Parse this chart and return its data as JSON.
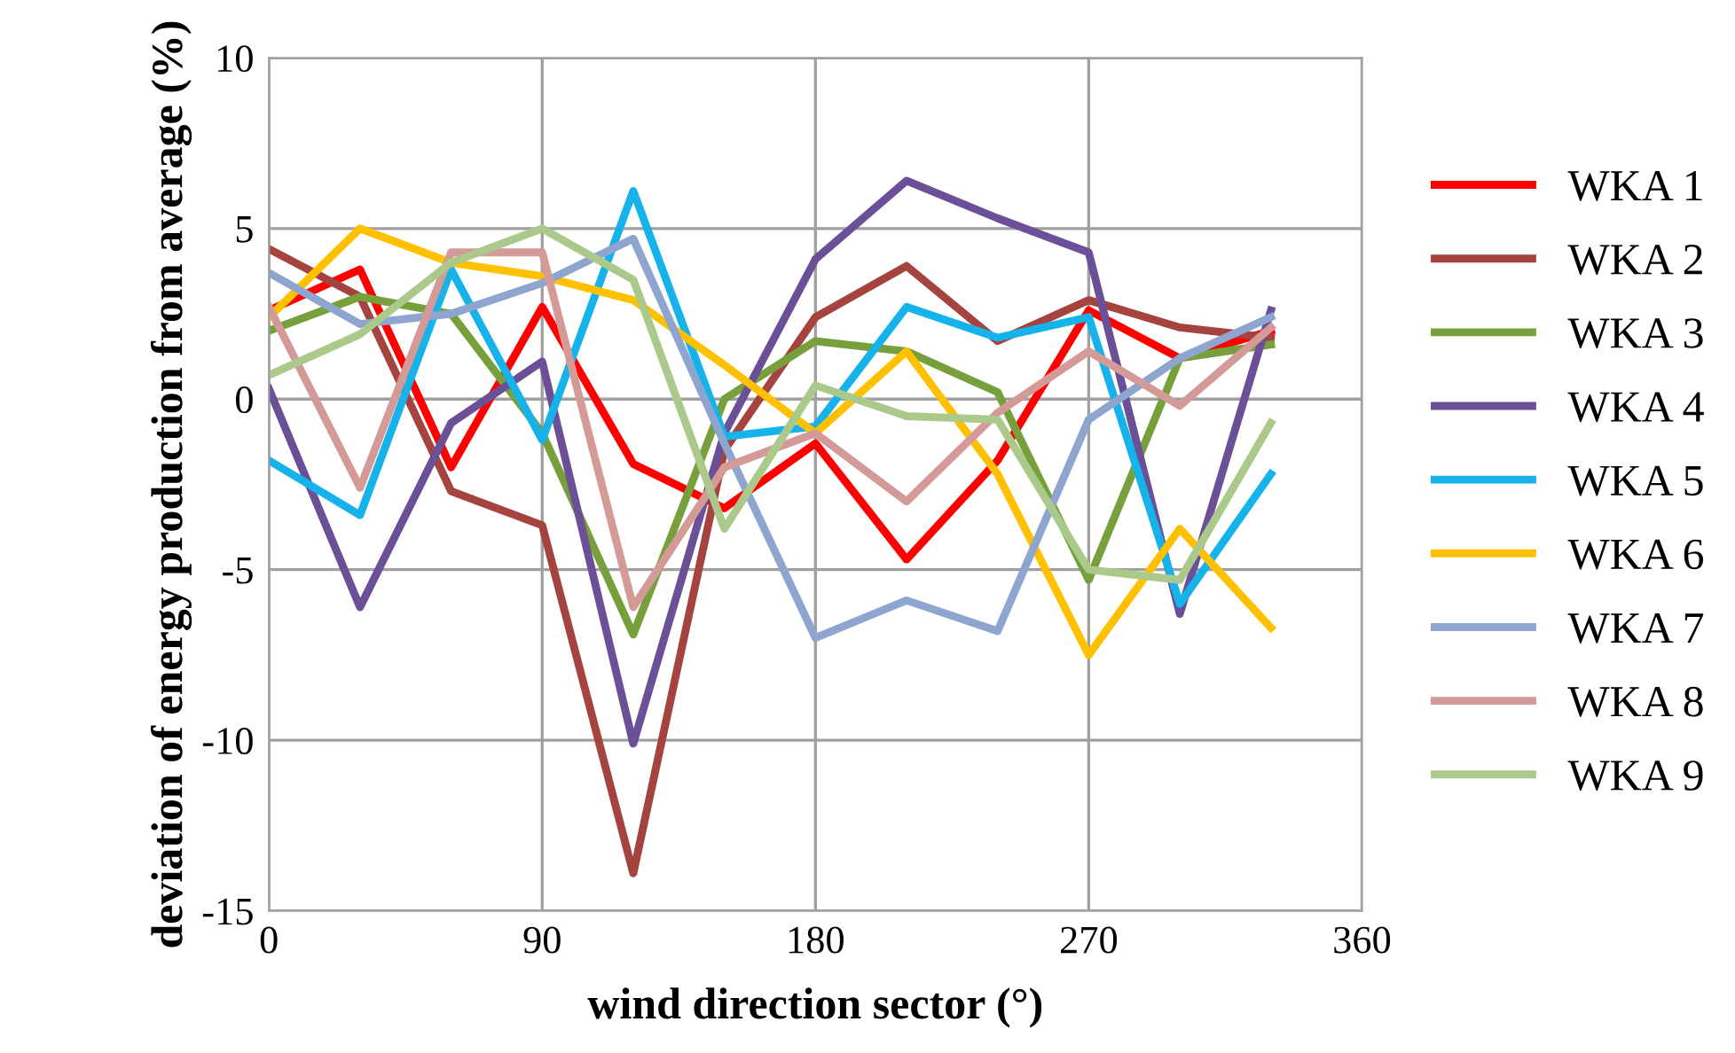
{
  "chart_data": {
    "type": "line",
    "xlabel": "wind direction sector (°)",
    "ylabel": "deviation of energy production from average (%)",
    "x": [
      0,
      30,
      60,
      90,
      120,
      150,
      180,
      210,
      240,
      270,
      300,
      330
    ],
    "xlim": [
      0,
      360
    ],
    "xticks": [
      0,
      90,
      180,
      270,
      360
    ],
    "ylim": [
      -15,
      10
    ],
    "yticks": [
      -15,
      -10,
      -5,
      0,
      5,
      10
    ],
    "grid": true,
    "legend": "right",
    "marker": "none",
    "line_style": "solid",
    "series": [
      {
        "name": "WKA 1",
        "color": "#ff0000",
        "values": [
          2.6,
          3.8,
          -2.0,
          2.7,
          -1.9,
          -3.2,
          -1.3,
          -4.7,
          -1.8,
          2.6,
          1.2,
          2.0
        ]
      },
      {
        "name": "WKA 2",
        "color": "#a5433f",
        "values": [
          4.4,
          3.0,
          -2.7,
          -3.7,
          -13.9,
          -1.5,
          2.4,
          3.9,
          1.7,
          2.9,
          2.1,
          1.8
        ]
      },
      {
        "name": "WKA 3",
        "color": "#77a03c",
        "values": [
          2.0,
          3.0,
          2.5,
          -1.0,
          -6.9,
          0.0,
          1.7,
          1.4,
          0.2,
          -5.3,
          1.2,
          1.6
        ]
      },
      {
        "name": "WKA 4",
        "color": "#6b4f97",
        "values": [
          0.3,
          -6.1,
          -0.7,
          1.1,
          -10.1,
          -1.0,
          4.1,
          6.4,
          5.3,
          4.3,
          -6.3,
          2.6
        ]
      },
      {
        "name": "WKA 5",
        "color": "#16b2ea",
        "values": [
          -1.8,
          -3.4,
          3.8,
          -1.2,
          6.1,
          -1.1,
          -0.8,
          2.7,
          1.8,
          2.4,
          -6.0,
          -2.2
        ]
      },
      {
        "name": "WKA 6",
        "color": "#ffc000",
        "values": [
          2.4,
          5.0,
          4.0,
          3.6,
          2.9,
          1.0,
          -1.0,
          1.4,
          -2.2,
          -7.5,
          -3.8,
          -6.7
        ]
      },
      {
        "name": "WKA 7",
        "color": "#8ea6cf",
        "values": [
          3.7,
          2.2,
          2.5,
          3.4,
          4.7,
          -1.3,
          -7.0,
          -5.9,
          -6.8,
          -0.6,
          1.2,
          2.4
        ]
      },
      {
        "name": "WKA 8",
        "color": "#d49a97",
        "values": [
          2.7,
          -2.6,
          4.3,
          4.3,
          -6.1,
          -2.0,
          -1.0,
          -3.0,
          -0.4,
          1.4,
          -0.2,
          2.1
        ]
      },
      {
        "name": "WKA 9",
        "color": "#abc98a",
        "values": [
          0.7,
          1.9,
          4.0,
          5.0,
          3.5,
          -3.8,
          0.4,
          -0.5,
          -0.6,
          -5.0,
          -5.3,
          -0.7
        ]
      }
    ]
  }
}
